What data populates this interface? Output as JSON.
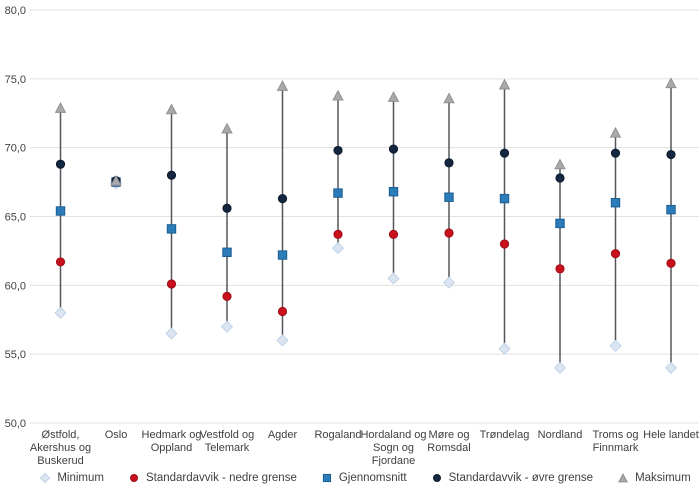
{
  "chart_data": {
    "type": "scatter",
    "subtype": "range-dot-plot",
    "title": "",
    "xlabel": "",
    "ylabel": "",
    "grid": "horizontal",
    "legend_position": "bottom",
    "categories": [
      "Østfold, Akershus og Buskerud",
      "Oslo",
      "Hedmark og Oppland",
      "Vestfold og Telemark",
      "Agder",
      "Rogaland",
      "Hordaland og Sogn og Fjordane",
      "Møre og Romsdal",
      "Trøndelag",
      "Nordland",
      "Troms og Finnmark",
      "Hele landet"
    ],
    "category_label_lines": [
      [
        "Østfold,",
        "Akershus og",
        "Buskerud"
      ],
      [
        "Oslo"
      ],
      [
        "Hedmark og",
        "Oppland"
      ],
      [
        "Vestfold og",
        "Telemark"
      ],
      [
        "Agder"
      ],
      [
        "Rogaland"
      ],
      [
        "Hordaland og",
        "Sogn og",
        "Fjordane"
      ],
      [
        "Møre og",
        "Romsdal"
      ],
      [
        "Trøndelag"
      ],
      [
        "Nordland"
      ],
      [
        "Troms og",
        "Finnmark"
      ],
      [
        "Hele landet"
      ]
    ],
    "y_axis": {
      "min": 50,
      "max": 80,
      "step": 5,
      "tick_labels": [
        "50,0",
        "55,0",
        "60,0",
        "65,0",
        "70,0",
        "75,0",
        "80,0"
      ]
    },
    "series": [
      {
        "name": "Minimum",
        "marker": "diamond",
        "color": "#dbe5f1",
        "stroke": "#bfd2e8",
        "values": [
          58.0,
          67.4,
          56.5,
          57.0,
          56.0,
          62.7,
          60.5,
          60.2,
          55.4,
          54.0,
          55.6,
          54.0
        ]
      },
      {
        "name": "Standardavvik - nedre grense",
        "marker": "circle",
        "color": "#c8111c",
        "stroke": "#9e0d16",
        "values": [
          61.7,
          67.5,
          60.1,
          59.2,
          58.1,
          63.7,
          63.7,
          63.8,
          63.0,
          61.2,
          62.3,
          61.6
        ]
      },
      {
        "name": "Gjennomsnitt",
        "marker": "square",
        "color": "#2b7cb8",
        "stroke": "#1b5e93",
        "values": [
          65.4,
          67.5,
          64.1,
          62.4,
          62.2,
          66.7,
          66.8,
          66.4,
          66.3,
          64.5,
          66.0,
          65.5
        ]
      },
      {
        "name": "Standardavvik - øvre grense",
        "marker": "circle",
        "color": "#152740",
        "stroke": "#0c1a2e",
        "values": [
          68.8,
          67.6,
          68.0,
          65.6,
          66.3,
          69.8,
          69.9,
          68.9,
          69.6,
          67.8,
          69.6,
          69.5
        ]
      },
      {
        "name": "Maksimum",
        "marker": "triangle",
        "color": "#a9a9ab",
        "stroke": "#919194",
        "values": [
          72.9,
          67.6,
          72.8,
          71.4,
          74.5,
          73.8,
          73.7,
          73.6,
          74.6,
          68.8,
          71.1,
          74.7
        ]
      }
    ],
    "style": {
      "range_line_color": "#55565a",
      "grid_color": "#e1e1e1",
      "text_color": "#3f3f3f",
      "background": "#ffffff"
    }
  }
}
